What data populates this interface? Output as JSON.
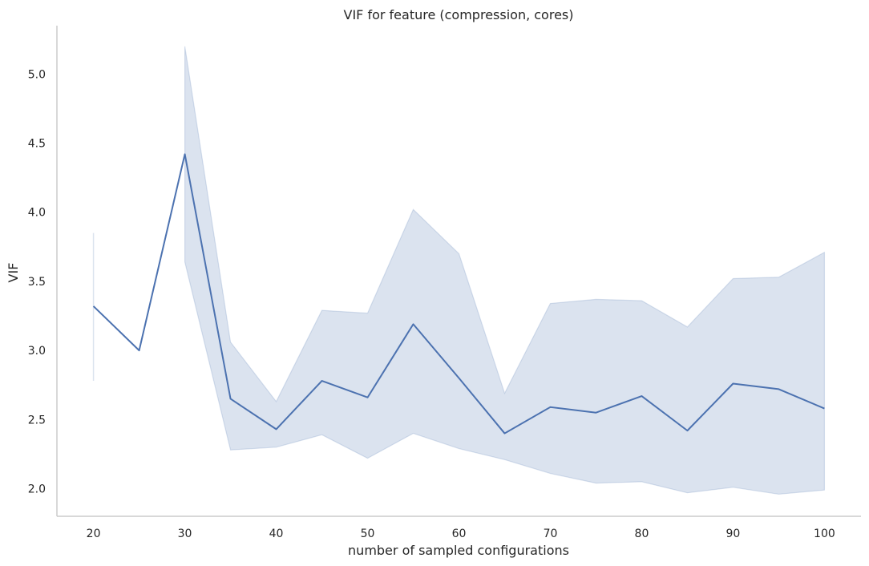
{
  "chart_data": {
    "type": "line",
    "title": "VIF for feature (compression, cores)",
    "xlabel": "number of sampled configurations",
    "ylabel": "VIF",
    "xlim": [
      16,
      104
    ],
    "ylim": [
      1.8,
      5.35
    ],
    "xticks": [
      20,
      30,
      40,
      50,
      60,
      70,
      80,
      90,
      100
    ],
    "yticks": [
      2.0,
      2.5,
      3.0,
      3.5,
      4.0,
      4.5,
      5.0
    ],
    "grid": false,
    "x": [
      20,
      25,
      30,
      35,
      40,
      45,
      50,
      55,
      60,
      65,
      70,
      75,
      80,
      85,
      90,
      95,
      100
    ],
    "series": [
      {
        "values": [
          3.32,
          3.0,
          4.42,
          2.65,
          2.43,
          2.78,
          2.66,
          3.19,
          2.8,
          2.4,
          2.59,
          2.55,
          2.67,
          2.42,
          2.76,
          2.72,
          2.58
        ],
        "ci_lower": [
          2.78,
          null,
          3.64,
          2.28,
          2.3,
          2.39,
          2.22,
          2.4,
          2.29,
          2.21,
          2.11,
          2.04,
          2.05,
          1.97,
          2.01,
          1.96,
          1.99
        ],
        "ci_upper": [
          3.85,
          null,
          5.2,
          3.06,
          2.63,
          3.29,
          3.27,
          4.02,
          3.7,
          2.69,
          3.34,
          3.37,
          3.36,
          3.17,
          3.52,
          3.53,
          3.71
        ],
        "color": "#4c72b0"
      }
    ]
  }
}
